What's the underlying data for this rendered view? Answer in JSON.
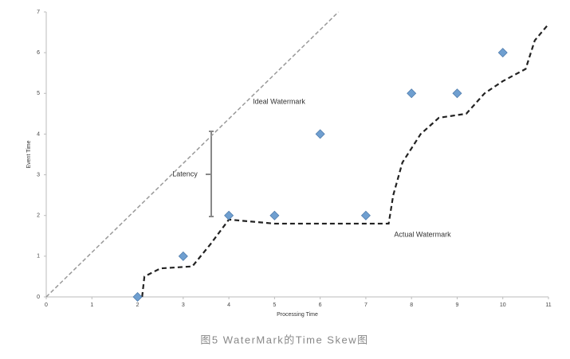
{
  "chart_data": {
    "type": "scatter",
    "caption": "图5 WaterMark的Time Skew图",
    "x_label": "Processing Time",
    "y_label": "Event Time",
    "x": [
      2,
      3,
      4,
      5,
      6,
      7,
      8,
      9,
      10
    ],
    "values": [
      0,
      1,
      2,
      2,
      4,
      2,
      5,
      5,
      6
    ],
    "color": "#6f9fd0",
    "xlim": [
      0,
      11
    ],
    "ylim": [
      0,
      7
    ],
    "xticks": [
      0,
      1,
      2,
      3,
      4,
      5,
      6,
      7,
      8,
      9,
      10,
      11
    ],
    "yticks": [
      0,
      1,
      2,
      3,
      4,
      5,
      6,
      7
    ],
    "lines": [
      {
        "name": "Ideal Watermark",
        "color": "#999999",
        "x": [
          0,
          6.4
        ],
        "values": [
          0,
          7
        ]
      },
      {
        "name": "Actual Watermark",
        "color": "#222222",
        "x": [
          2.1,
          2.15,
          2.5,
          3.2,
          3.6,
          4,
          4.5,
          5,
          7.5,
          7.6,
          7.8,
          8.2,
          8.6,
          9.2,
          9.6,
          10,
          10.5,
          10.7,
          11
        ],
        "values": [
          0,
          0.5,
          0.7,
          0.75,
          1.3,
          1.9,
          1.85,
          1.8,
          1.8,
          2.5,
          3.3,
          4,
          4.4,
          4.5,
          5,
          5.3,
          5.6,
          6.3,
          6.7
        ]
      }
    ],
    "annotation": "Latency"
  }
}
